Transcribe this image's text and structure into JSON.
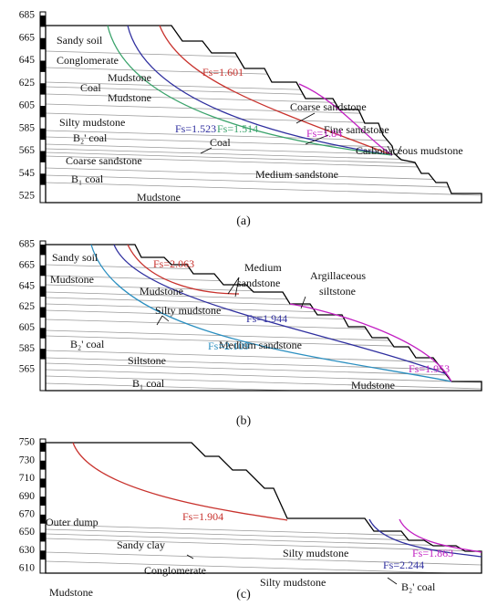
{
  "panels": [
    {
      "caption": "(a)",
      "elevations": [
        "685",
        "665",
        "645",
        "625",
        "605",
        "585",
        "565",
        "545",
        "525"
      ],
      "layers": [
        "Sandy soil",
        "Conglomerate",
        "Mudstone",
        "Coal",
        "Mudstone",
        "Silty mudstone",
        "B₂' coal",
        "Coal",
        "Coarse sandstone",
        "Medium sandstone",
        "B₁ coal",
        "Mudstone",
        "Coarse sandstone",
        "Fine sandstone",
        "Carbonaceous mudstone"
      ],
      "fs_labels": [
        "Fs=1.601",
        "Fs=1.523",
        "Fs=1.514",
        "Fs=1.84"
      ]
    },
    {
      "caption": "(b)",
      "elevations": [
        "685",
        "665",
        "645",
        "625",
        "605",
        "585",
        "565"
      ],
      "layers": [
        "Sandy soil",
        "Mudstone",
        "Mudstone",
        "Medium",
        "sandstone",
        "Argillaceous",
        "siltstone",
        "Silty mudstone",
        "B₂' coal",
        "Siltstone",
        "Medium sandstone",
        "B₁ coal",
        "Mudstone"
      ],
      "fs_labels": [
        "Fs=2.063",
        "Fs=1.944",
        "Fs=2.109",
        "Fs=1.953"
      ]
    },
    {
      "caption": "(c)",
      "elevations": [
        "750",
        "730",
        "710",
        "690",
        "670",
        "650",
        "630",
        "610"
      ],
      "layers": [
        "Outer dump",
        "Sandy clay",
        "Silty mudstone",
        "Conglomerate",
        "Silty mudstone",
        "Mudstone",
        "B₂' coal"
      ],
      "fs_labels": [
        "Fs=1.904",
        "Fs=1.863",
        "Fs=2.244"
      ]
    }
  ]
}
